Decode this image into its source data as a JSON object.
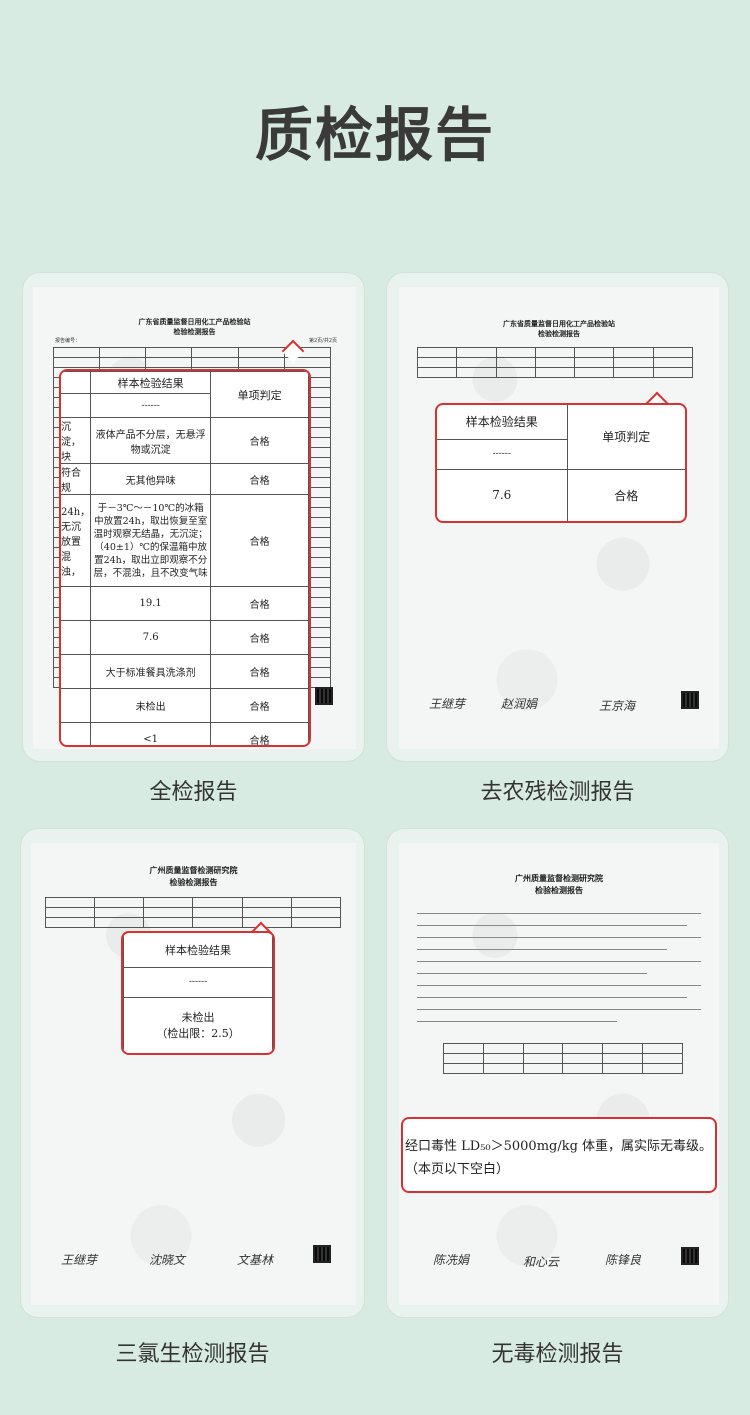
{
  "page": {
    "title": "质检报告"
  },
  "colors": {
    "background": "#d8ebe2",
    "highlight": "#d9312f",
    "text": "#333333"
  },
  "cards": [
    {
      "caption": "全检报告",
      "org": "广东省质量监督日用化工产品检验站",
      "report_title": "检验检测报告",
      "report_no": "报告编号：",
      "page_no": "第2页/共2页",
      "zoom_rows": [
        {
          "result": "样本检验结果",
          "verdict": "单项判定",
          "left": ""
        },
        {
          "result": "------",
          "verdict": "",
          "left": ""
        },
        {
          "result": "液体产品不分层，无悬浮物或沉淀",
          "verdict": "合格",
          "left": "沉淀，块"
        },
        {
          "result": "无其他异味",
          "verdict": "合格",
          "left": "符合规"
        },
        {
          "result": "于－3℃～－10℃的冰箱中放置24h，取出恢复至室温时观察无结晶，无沉淀；（40±1）℃的保温箱中放置24h，取出立即观察不分层，不混浊，且不改变气味",
          "verdict": "合格",
          "left": "24h，无沉放置混浊，"
        },
        {
          "result": "19.1",
          "verdict": "合格",
          "left": ""
        },
        {
          "result": "7.6",
          "verdict": "合格",
          "left": ""
        },
        {
          "result": "大于标准餐具洗涤剂",
          "verdict": "合格",
          "left": ""
        },
        {
          "result": "未检出",
          "verdict": "合格",
          "left": ""
        },
        {
          "result": "<1",
          "verdict": "合格",
          "left": ""
        }
      ]
    },
    {
      "caption": "去农残检测报告",
      "org": "广东省质量监督日用化工产品检验站",
      "report_title": "检验检测报告",
      "zoom_rows": [
        {
          "result": "样本检验结果",
          "verdict": "单项判定"
        },
        {
          "result": "------",
          "verdict": ""
        },
        {
          "result": "7.6",
          "verdict": "合格"
        }
      ],
      "signatures": [
        "王继芽",
        "赵润娟",
        "王京海"
      ]
    },
    {
      "caption": "三氯生检测报告",
      "org": "广州质量监督检测研究院",
      "report_title": "检验检测报告",
      "zoom_rows": [
        {
          "result": "样本检验结果"
        },
        {
          "result": "------"
        },
        {
          "result": "未检出\n（检出限：2.5）"
        }
      ],
      "signatures": [
        "王继芽",
        "沈晓文",
        "文基林"
      ]
    },
    {
      "caption": "无毒检测报告",
      "org": "广州质量监督检测研究院",
      "report_title": "检验检测报告",
      "zoom_text_line1": "经口毒性 LD₅₀＞5000mg/kg 体重，属实际无毒级。",
      "zoom_text_line2": "（本页以下空白）",
      "signatures": [
        "陈冼娟",
        "和心云",
        "陈锋良"
      ]
    }
  ]
}
